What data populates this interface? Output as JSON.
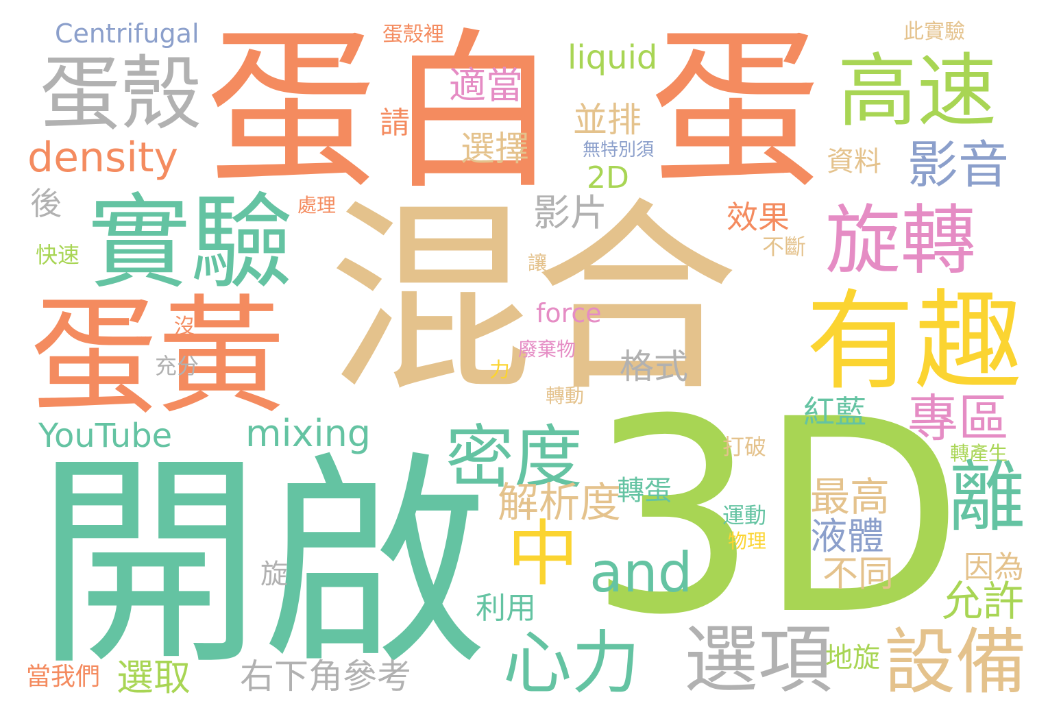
{
  "colors": {
    "orange": "#f48b5f",
    "tan": "#e4c28c",
    "teal": "#64c3a2",
    "green": "#a8d554",
    "gray": "#b1b1b1",
    "yellow": "#fbd431",
    "pink": "#e58cc4",
    "blue": "#8b9fcb"
  },
  "words": {
    "dan1": "蛋",
    "bai": "白",
    "dan2": "蛋",
    "hunhe": "混合",
    "kaiqi": "開啟",
    "three_d": "3D",
    "danke": "蛋殼",
    "density": "density",
    "centrifugal": "Centrifugal",
    "dankeli": "蛋殼裡",
    "liquid": "liquid",
    "cishiyan": "此實驗",
    "gaosu": "高速",
    "shiyan": "實驗",
    "hou": "後",
    "chuli": "處理",
    "kuaisu": "快速",
    "shidang": "適當",
    "xuanze": "選擇",
    "qing": "請",
    "bingpai": "並排",
    "wutebie": "無特別須",
    "two_d": "2D",
    "yingpian": "影片",
    "ziliao": "資料",
    "yingyin": "影音",
    "xuanzhuan": "旋轉",
    "xiaoguo": "效果",
    "buduan": "不斷",
    "rang": "讓",
    "force": "force",
    "danhuang": "蛋黃",
    "youqu": "有趣",
    "mei": "沒",
    "feiqiwu": "廢棄物",
    "geshi": "格式",
    "chongfen": "充分",
    "li": "力",
    "zhuandong": "轉動",
    "honglan": "紅藍",
    "zhuanqu": "專區",
    "youtube": "YouTube",
    "mixing": "mixing",
    "midu": "密度",
    "dapo": "打破",
    "zhuanchansheng": "轉產生",
    "zhuandan": "轉蛋",
    "jiexidu": "解析度",
    "zuigao": "最高",
    "li2": "離",
    "yundong": "運動",
    "yeti": "液體",
    "wuli": "物理",
    "zhong": "中",
    "yinwei": "因為",
    "and": "and",
    "xuan": "旋",
    "butong": "不同",
    "yunxu": "允許",
    "liyong": "利用",
    "xinli": "心力",
    "xuanxiang": "選項",
    "shebei": "設備",
    "dixuan": "地旋",
    "youxiajiao": "右下角參考",
    "dangwomen": "當我們",
    "xuanqu": "選取"
  }
}
